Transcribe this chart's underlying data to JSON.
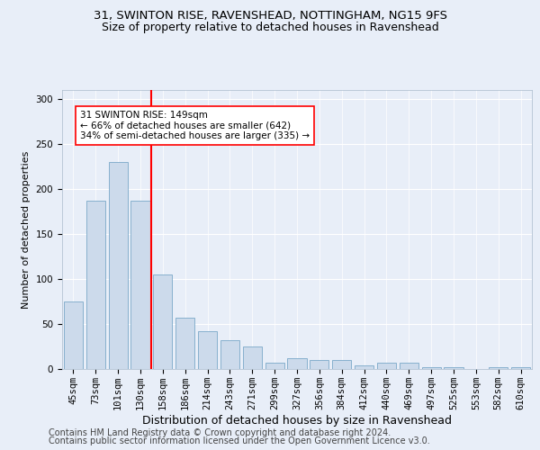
{
  "title_line1": "31, SWINTON RISE, RAVENSHEAD, NOTTINGHAM, NG15 9FS",
  "title_line2": "Size of property relative to detached houses in Ravenshead",
  "xlabel": "Distribution of detached houses by size in Ravenshead",
  "ylabel": "Number of detached properties",
  "categories": [
    "45sqm",
    "73sqm",
    "101sqm",
    "130sqm",
    "158sqm",
    "186sqm",
    "214sqm",
    "243sqm",
    "271sqm",
    "299sqm",
    "327sqm",
    "356sqm",
    "384sqm",
    "412sqm",
    "440sqm",
    "469sqm",
    "497sqm",
    "525sqm",
    "553sqm",
    "582sqm",
    "610sqm"
  ],
  "values": [
    75,
    187,
    230,
    187,
    105,
    57,
    42,
    32,
    25,
    7,
    12,
    10,
    10,
    4,
    7,
    7,
    2,
    2,
    0,
    2,
    2
  ],
  "bar_color": "#ccdaeb",
  "bar_edge_color": "#7aa8c8",
  "vline_x": 3.5,
  "annotation_text": "31 SWINTON RISE: 149sqm\n← 66% of detached houses are smaller (642)\n34% of semi-detached houses are larger (335) →",
  "annotation_box_color": "white",
  "annotation_box_edge_color": "red",
  "vline_color": "red",
  "ylim": [
    0,
    310
  ],
  "yticks": [
    0,
    50,
    100,
    150,
    200,
    250,
    300
  ],
  "background_color": "#e8eef8",
  "footer_line1": "Contains HM Land Registry data © Crown copyright and database right 2024.",
  "footer_line2": "Contains public sector information licensed under the Open Government Licence v3.0.",
  "title_fontsize": 9.5,
  "subtitle_fontsize": 9,
  "xlabel_fontsize": 9,
  "ylabel_fontsize": 8,
  "tick_fontsize": 7.5,
  "annotation_fontsize": 7.5,
  "footer_fontsize": 7
}
